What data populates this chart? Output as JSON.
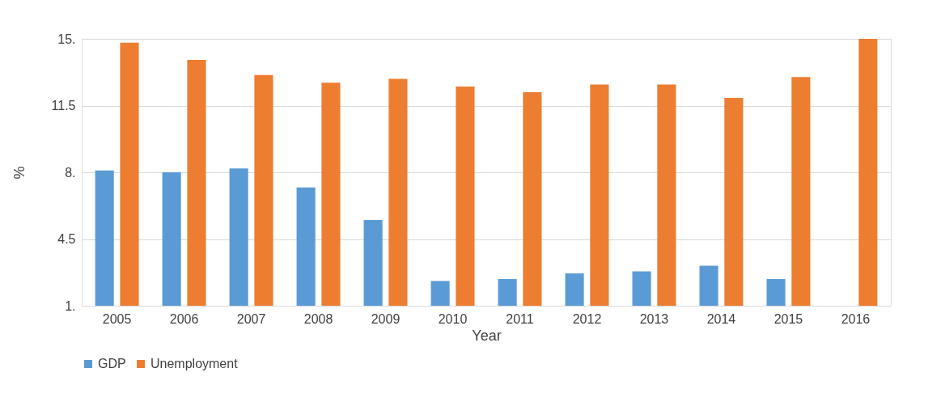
{
  "chart_data": {
    "type": "bar",
    "xlabel": "Year",
    "ylabel": "%",
    "categories": [
      "2005",
      "2006",
      "2007",
      "2008",
      "2009",
      "2010",
      "2011",
      "2012",
      "2013",
      "2014",
      "2015",
      "2016"
    ],
    "series": [
      {
        "name": "GDP",
        "color": "#5b9bd5",
        "values": [
          8.1,
          8.0,
          8.2,
          7.2,
          5.5,
          2.3,
          2.4,
          2.7,
          2.8,
          3.1,
          2.4,
          null
        ]
      },
      {
        "name": "Unemployment",
        "color": "#ed7d31",
        "values": [
          14.8,
          13.9,
          13.1,
          12.7,
          12.9,
          12.5,
          12.2,
          12.6,
          12.6,
          11.9,
          13.0,
          15.0
        ]
      }
    ],
    "ylim": [
      1,
      15
    ],
    "yticks": [
      {
        "value": 1,
        "label": "1."
      },
      4.5,
      {
        "value": 8,
        "label": "8."
      },
      11.5,
      {
        "value": 15,
        "label": "15."
      }
    ],
    "grid": "y",
    "legend": "bottom"
  }
}
